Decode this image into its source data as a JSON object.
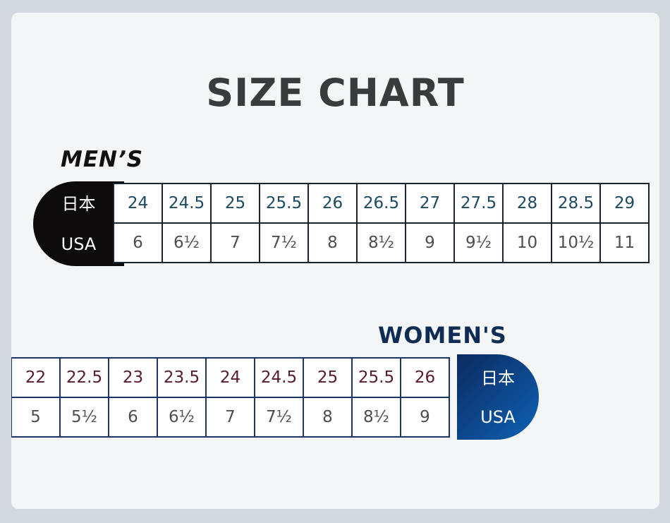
{
  "title": "SIZE CHART",
  "mens": {
    "label": "MEN’S",
    "row_headers": [
      "日本",
      "USA"
    ],
    "jp_sizes": [
      "24",
      "24.5",
      "25",
      "25.5",
      "26",
      "26.5",
      "27",
      "27.5",
      "28",
      "28.5",
      "29"
    ],
    "us_sizes": [
      "6",
      "6½",
      "7",
      "7½",
      "8",
      "8½",
      "9",
      "9½",
      "10",
      "10½",
      "11"
    ]
  },
  "womens": {
    "label": "WOMEN'S",
    "row_headers": [
      "日本",
      "USA"
    ],
    "jp_sizes": [
      "22",
      "22.5",
      "23",
      "23.5",
      "24",
      "24.5",
      "25",
      "25.5",
      "26"
    ],
    "us_sizes": [
      "5",
      "5½",
      "6",
      "6½",
      "7",
      "7½",
      "8",
      "8½",
      "9"
    ]
  },
  "colors": {
    "mens_header_bg": "#0d0b0b",
    "womens_header_bg": "#0d4b93",
    "mens_jp_text": "#1e4a63",
    "womens_jp_text": "#5a1a33"
  }
}
